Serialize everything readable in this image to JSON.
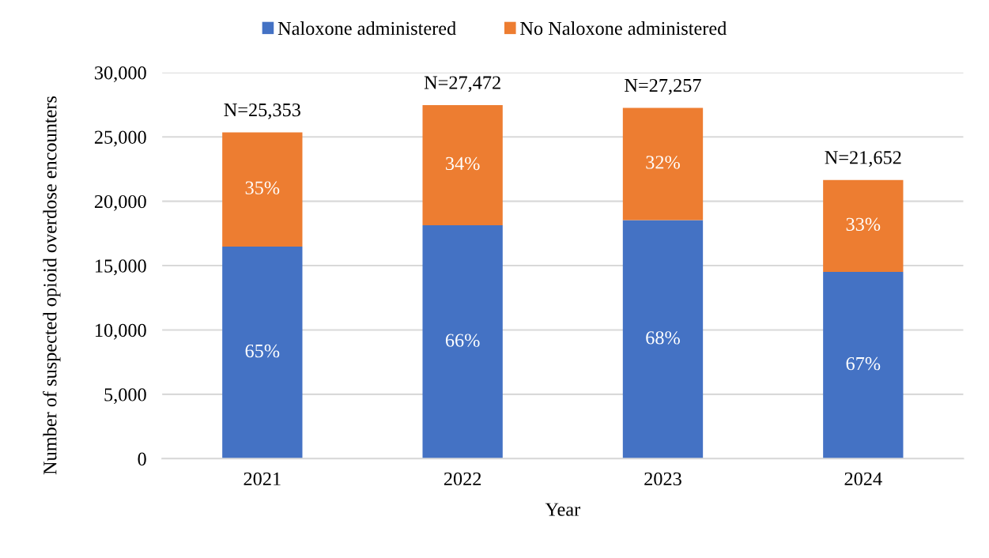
{
  "chart_data": {
    "type": "bar",
    "stacked": true,
    "categories": [
      "2021",
      "2022",
      "2023",
      "2024"
    ],
    "series": [
      {
        "name": "Naloxone administered",
        "color": "#4472c4",
        "values": [
          16480,
          18130,
          18530,
          14510
        ]
      },
      {
        "name": "No Naloxone administered",
        "color": "#ed7d31",
        "values": [
          8873,
          9342,
          8727,
          7142
        ]
      }
    ],
    "totals": [
      "N=25,353",
      "N=27,472",
      "N=27,257",
      "N=21,652"
    ],
    "annotations": [
      "65%",
      "66%",
      "68%",
      "67%",
      "35%",
      "34%",
      "32%",
      "33%"
    ],
    "xlabel": "Year",
    "ylabel": "Number of suspected opioid overdose encounters",
    "ylim": [
      0,
      30000
    ],
    "yticks": [
      0,
      {
        "value": 5000,
        "label": "5,000"
      },
      {
        "value": 10000,
        "label": "10,000"
      },
      {
        "value": 15000,
        "label": "15,000"
      },
      {
        "value": 20000,
        "label": "20,000"
      },
      {
        "value": 25000,
        "label": "25,000"
      },
      {
        "value": 30000,
        "label": "30,000"
      }
    ],
    "grid": "y",
    "legend": "top"
  }
}
